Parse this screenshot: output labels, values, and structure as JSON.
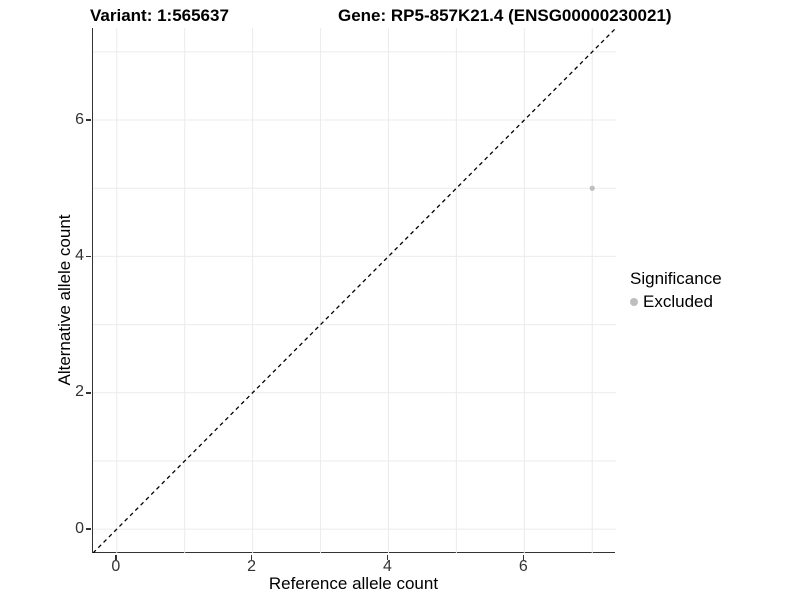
{
  "chart_data": {
    "type": "scatter",
    "title_left": "Variant: 1:565637",
    "title_right": "Gene: RP5-857K21.4 (ENSG00000230021)",
    "xlabel": "Reference allele count",
    "ylabel": "Alternative allele count",
    "xlim": [
      -0.35,
      7.35
    ],
    "ylim": [
      -0.35,
      7.35
    ],
    "xticks": [
      0,
      2,
      4,
      6
    ],
    "yticks": [
      0,
      2,
      4,
      6
    ],
    "grid_positions": [
      0,
      1,
      2,
      3,
      4,
      5,
      6,
      7
    ],
    "grid": true,
    "points": [
      {
        "x": 7,
        "y": 5,
        "series": "Excluded"
      }
    ],
    "reference_line": {
      "type": "identity",
      "style": "dashed",
      "from": [
        -0.35,
        -0.35
      ],
      "to": [
        7.35,
        7.35
      ]
    },
    "legend": {
      "title": "Significance",
      "position": "right",
      "items": [
        {
          "label": "Excluded",
          "color": "#BEBEBE"
        }
      ]
    },
    "colors": {
      "point": "#BEBEBE",
      "grid": "#EBEBEB",
      "axis": "#333333",
      "tick_label": "#333333",
      "reference_line": "#000000"
    }
  }
}
